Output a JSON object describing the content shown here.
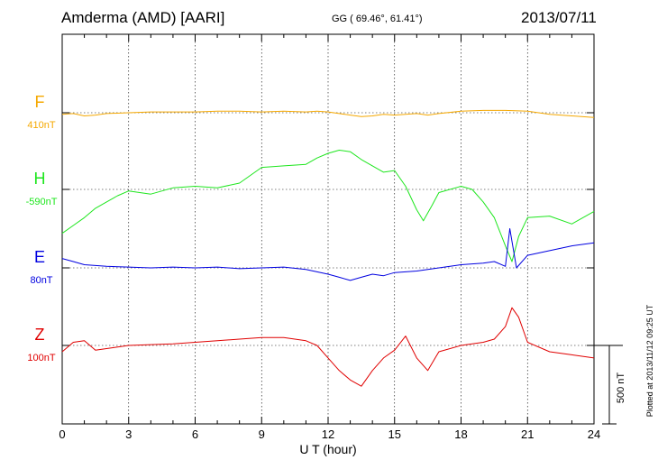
{
  "header": {
    "station": "Amderma (AMD)  [AARI]",
    "coords": "GG ( 69.46°,  61.41°)",
    "date": "2013/07/11"
  },
  "footer": {
    "plotted": "Plotted at 2013/11/12 09:25 UT",
    "scale": "500 nT"
  },
  "chart_data": {
    "type": "line",
    "title": "Amderma (AMD)  [AARI]",
    "xlabel": "U T (hour)",
    "ylabel": "",
    "xlim": [
      0,
      24
    ],
    "xticks": [
      0,
      3,
      6,
      9,
      12,
      15,
      18,
      21,
      24
    ],
    "grid": true,
    "scale_bar_nT": 500,
    "series": [
      {
        "name": "F",
        "baseline": "410nT",
        "color": "#f5a800",
        "x": [
          0,
          0.5,
          1,
          1.5,
          2,
          3,
          4,
          5,
          6,
          7,
          8,
          9,
          10,
          11,
          11.5,
          12,
          12.5,
          13,
          13.5,
          14,
          14.5,
          15,
          15.5,
          16,
          16.5,
          17,
          18,
          19,
          20,
          21,
          22,
          23,
          24
        ],
        "y": [
          -10,
          -5,
          -20,
          -15,
          -5,
          0,
          5,
          5,
          5,
          10,
          10,
          5,
          10,
          5,
          10,
          5,
          -5,
          -15,
          -25,
          -20,
          -10,
          -15,
          -10,
          -5,
          -15,
          -5,
          10,
          15,
          15,
          10,
          -10,
          -20,
          -30
        ]
      },
      {
        "name": "H",
        "baseline": "-590nT",
        "color": "#1ee61e",
        "x": [
          0,
          0.5,
          1,
          1.5,
          2,
          2.5,
          3,
          3.5,
          4,
          5,
          6,
          7,
          8,
          9,
          10,
          11,
          11.5,
          12,
          12.5,
          13,
          13.5,
          14,
          14.5,
          15,
          15.5,
          16,
          16.3,
          16.7,
          17,
          18,
          18.5,
          19,
          19.5,
          20,
          20.3,
          20.6,
          21,
          22,
          23,
          24
        ],
        "y": [
          -280,
          -230,
          -180,
          -120,
          -80,
          -40,
          -10,
          -20,
          -30,
          10,
          20,
          10,
          40,
          140,
          150,
          160,
          200,
          230,
          250,
          240,
          190,
          150,
          110,
          120,
          20,
          -130,
          -200,
          -100,
          -20,
          20,
          0,
          -80,
          -180,
          -360,
          -460,
          -300,
          -180,
          -170,
          -220,
          -140
        ]
      },
      {
        "name": "E",
        "baseline": "80nT",
        "color": "#0000e0",
        "x": [
          0,
          0.5,
          1,
          2,
          3,
          4,
          5,
          6,
          7,
          8,
          9,
          10,
          11,
          12,
          12.5,
          13,
          13.5,
          14,
          14.5,
          15,
          16,
          17,
          18,
          19,
          19.5,
          20,
          20.2,
          20.5,
          21,
          22,
          23,
          24
        ],
        "y": [
          60,
          40,
          20,
          10,
          5,
          0,
          5,
          0,
          5,
          -5,
          0,
          5,
          -10,
          -40,
          -60,
          -80,
          -60,
          -40,
          -50,
          -30,
          -20,
          0,
          20,
          30,
          40,
          10,
          250,
          0,
          80,
          110,
          140,
          160
        ]
      },
      {
        "name": "Z",
        "baseline": "100nT",
        "color": "#e00000",
        "x": [
          0,
          0.5,
          1,
          1.5,
          2,
          3,
          4,
          5,
          6,
          7,
          8,
          9,
          10,
          11,
          11.5,
          12,
          12.5,
          13,
          13.5,
          14,
          14.5,
          15,
          15.5,
          16,
          16.5,
          17,
          18,
          19,
          19.5,
          20,
          20.3,
          20.6,
          21,
          22,
          23,
          24
        ],
        "y": [
          -40,
          20,
          30,
          -30,
          -20,
          0,
          5,
          10,
          20,
          30,
          40,
          50,
          50,
          30,
          0,
          -80,
          -160,
          -220,
          -260,
          -160,
          -80,
          -30,
          60,
          -80,
          -160,
          -40,
          0,
          20,
          40,
          120,
          240,
          180,
          20,
          -40,
          -60,
          -80
        ]
      }
    ]
  }
}
